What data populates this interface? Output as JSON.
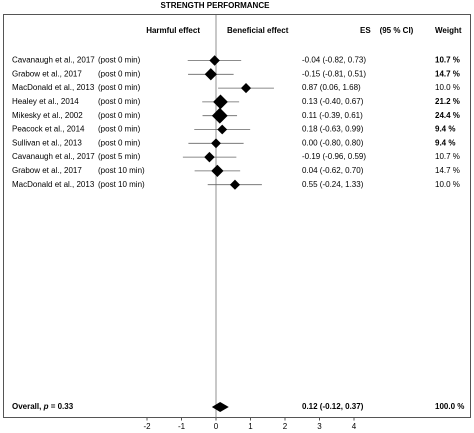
{
  "chart_data": {
    "type": "forest",
    "title": "STRENGTH PERFORMANCE",
    "left_header": "Harmful effect",
    "right_header": "Beneficial effect",
    "es_header": "ES    (95 % CI)",
    "weight_header": "Weight",
    "xlim": [
      -2,
      4
    ],
    "xticks": [
      -2,
      -1,
      0,
      1,
      2,
      3,
      4
    ],
    "color": "#000000",
    "rows": [
      {
        "label": "Cavanaugh et al., 2017",
        "time": "(post 0 min)",
        "es": -0.04,
        "lo": -0.82,
        "hi": 0.73,
        "ci_label": "-0.04 (-0.82, 0.73)",
        "weight": 10.7,
        "weight_label": "10.7 %",
        "bold": true
      },
      {
        "label": "Grabow et al., 2017",
        "time": "(post 0 min)",
        "es": -0.15,
        "lo": -0.81,
        "hi": 0.51,
        "ci_label": "-0.15 (-0.81, 0.51)",
        "weight": 14.7,
        "weight_label": "14.7 %",
        "bold": true
      },
      {
        "label": "MacDonald et al., 2013",
        "time": "(post 0 min)",
        "es": 0.87,
        "lo": 0.06,
        "hi": 1.68,
        "ci_label": "0.87 (0.06, 1.68)",
        "weight": 10.0,
        "weight_label": "10.0 %",
        "bold": false
      },
      {
        "label": "Healey et al., 2014",
        "time": "(post 0 min)",
        "es": 0.13,
        "lo": -0.4,
        "hi": 0.67,
        "ci_label": "0.13 (-0.40, 0.67)",
        "weight": 21.2,
        "weight_label": "21.2 %",
        "bold": true
      },
      {
        "label": "Mikesky et al., 2002",
        "time": "(post 0 min)",
        "es": 0.11,
        "lo": -0.39,
        "hi": 0.61,
        "ci_label": "0.11 (-0.39, 0.61)",
        "weight": 24.4,
        "weight_label": "24.4 %",
        "bold": true
      },
      {
        "label": "Peacock et al., 2014",
        "time": "(post 0 min)",
        "es": 0.18,
        "lo": -0.63,
        "hi": 0.99,
        "ci_label": "0.18 (-0.63, 0.99)",
        "weight": 9.4,
        "weight_label": "9.4 %",
        "bold": true
      },
      {
        "label": "Sullivan et al., 2013",
        "time": "(post 0 min)",
        "es": 0.0,
        "lo": -0.8,
        "hi": 0.8,
        "ci_label": "0.00 (-0.80, 0.80)",
        "weight": 9.4,
        "weight_label": "9.4 %",
        "bold": true
      },
      {
        "label": "Cavanaugh et al., 2017",
        "time": "(post 5 min)",
        "es": -0.19,
        "lo": -0.96,
        "hi": 0.59,
        "ci_label": "-0.19 (-0.96, 0.59)",
        "weight": 10.7,
        "weight_label": "10.7 %",
        "bold": false
      },
      {
        "label": "Grabow et al., 2017",
        "time": "(post 10 min)",
        "es": 0.04,
        "lo": -0.62,
        "hi": 0.7,
        "ci_label": "0.04 (-0.62, 0.70)",
        "weight": 14.7,
        "weight_label": "14.7 %",
        "bold": false
      },
      {
        "label": "MacDonald et al., 2013",
        "time": "(post 10 min)",
        "es": 0.55,
        "lo": -0.24,
        "hi": 1.33,
        "ci_label": "0.55 (-0.24, 1.33)",
        "weight": 10.0,
        "weight_label": "10.0 %",
        "bold": false
      }
    ],
    "overall": {
      "label_parts": [
        "Overall, ",
        "p",
        " = 0.33"
      ],
      "es": 0.12,
      "lo": -0.12,
      "hi": 0.37,
      "ci_label": "0.12 (-0.12, 0.37)",
      "weight": 100.0,
      "weight_label": "100.0 %"
    }
  }
}
